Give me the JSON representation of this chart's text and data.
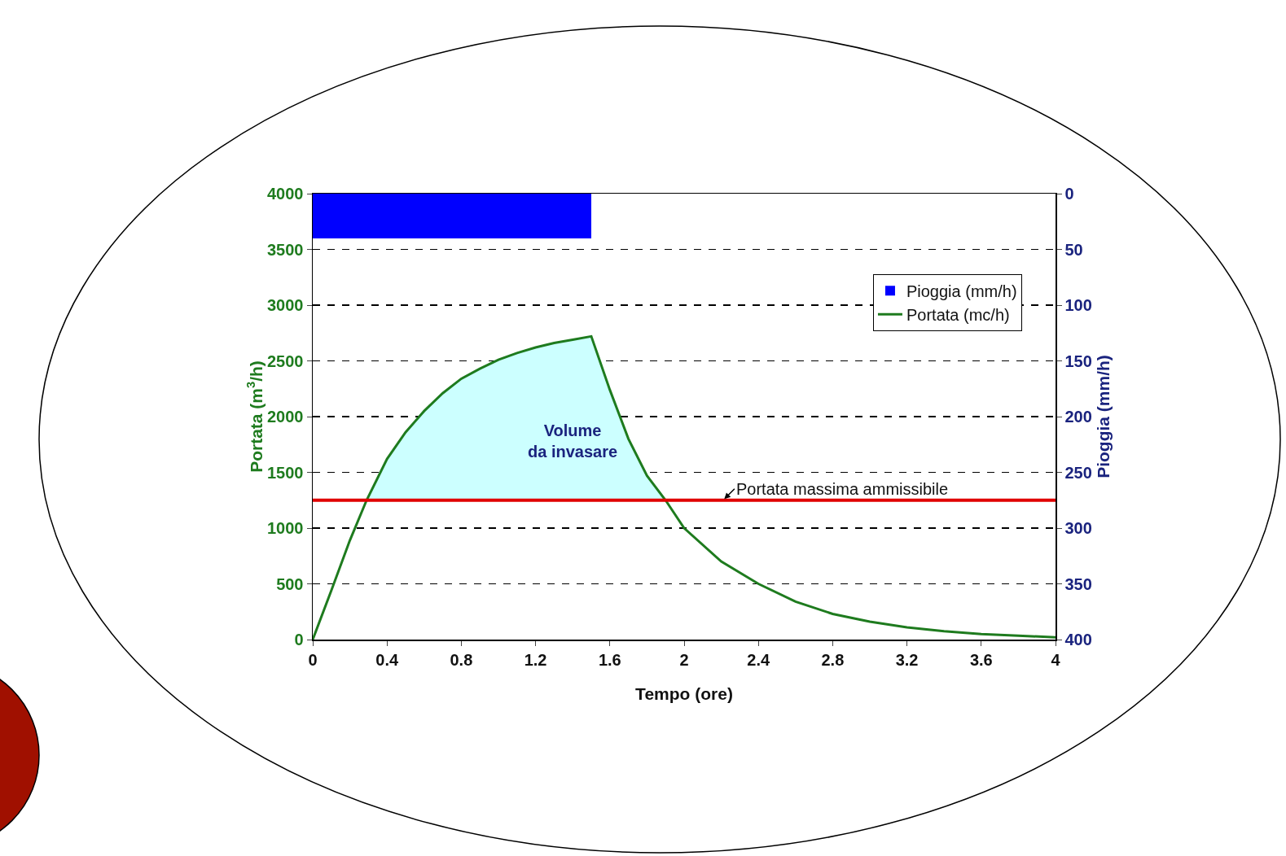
{
  "chart_data": {
    "type": "line",
    "xlabel": "Tempo (ore)",
    "ylabel": "Portata (m$^{3}$/h)",
    "y2label": "Pioggia (mm/h)",
    "xlim": [
      0,
      4
    ],
    "xticks": [
      0,
      0.4,
      0.8,
      1.2,
      1.6,
      2,
      2.4,
      2.8,
      3.2,
      3.6,
      4
    ],
    "ylim": [
      0,
      4000
    ],
    "yticks": [
      0,
      500,
      1000,
      1500,
      2000,
      2500,
      3000,
      3500,
      4000
    ],
    "y2lim": [
      400,
      0
    ],
    "y2ticks": [
      0,
      50,
      100,
      150,
      200,
      250,
      300,
      350,
      400
    ],
    "grid": "y",
    "legend": "top right",
    "marker": "none",
    "line_style": "solid",
    "series": [
      {
        "name": "Pioggia (mm/h)",
        "type": "bar",
        "axis": "y2",
        "color": "#0000ff",
        "x": [
          0.25,
          0.75,
          1.25
        ],
        "values": [
          40,
          40,
          40
        ]
      },
      {
        "name": "Portata (mc/h)",
        "color": "#1e7b1e",
        "x": [
          0,
          0.1,
          0.2,
          0.29,
          0.4,
          0.5,
          0.6,
          0.7,
          0.8,
          0.9,
          1.0,
          1.1,
          1.2,
          1.3,
          1.4,
          1.5,
          1.6,
          1.7,
          1.8,
          1.9,
          2.0,
          2.2,
          2.4,
          2.6,
          2.8,
          3.0,
          3.2,
          3.4,
          3.6,
          3.8,
          4.0
        ],
        "values": [
          0,
          440,
          890,
          1250,
          1620,
          1860,
          2050,
          2210,
          2340,
          2430,
          2510,
          2570,
          2620,
          2660,
          2690,
          2720,
          2240,
          1800,
          1470,
          1250,
          1000,
          700,
          500,
          340,
          230,
          160,
          110,
          75,
          50,
          35,
          20
        ],
        "lower": [
          null,
          null,
          null,
          1250,
          1250,
          1250,
          1250,
          1250,
          1250,
          1250,
          1250,
          1250,
          1250,
          1250,
          1250,
          1250,
          1250,
          1250,
          1250,
          1250,
          null,
          null,
          null,
          null,
          null,
          null,
          null,
          null,
          null,
          null,
          null
        ],
        "upper": [
          null,
          null,
          null,
          1250,
          1620,
          1860,
          2050,
          2210,
          2340,
          2430,
          2510,
          2570,
          2620,
          2660,
          2690,
          2720,
          2240,
          1800,
          1470,
          1250,
          null,
          null,
          null,
          null,
          null,
          null,
          null,
          null,
          null,
          null,
          null
        ]
      }
    ],
    "ref_lines": [
      {
        "axis": "y",
        "value": 1250,
        "label": "Portata massima ammissibile",
        "color": "#e00000"
      }
    ],
    "annotations": [
      "Volume\nda invasare"
    ]
  }
}
